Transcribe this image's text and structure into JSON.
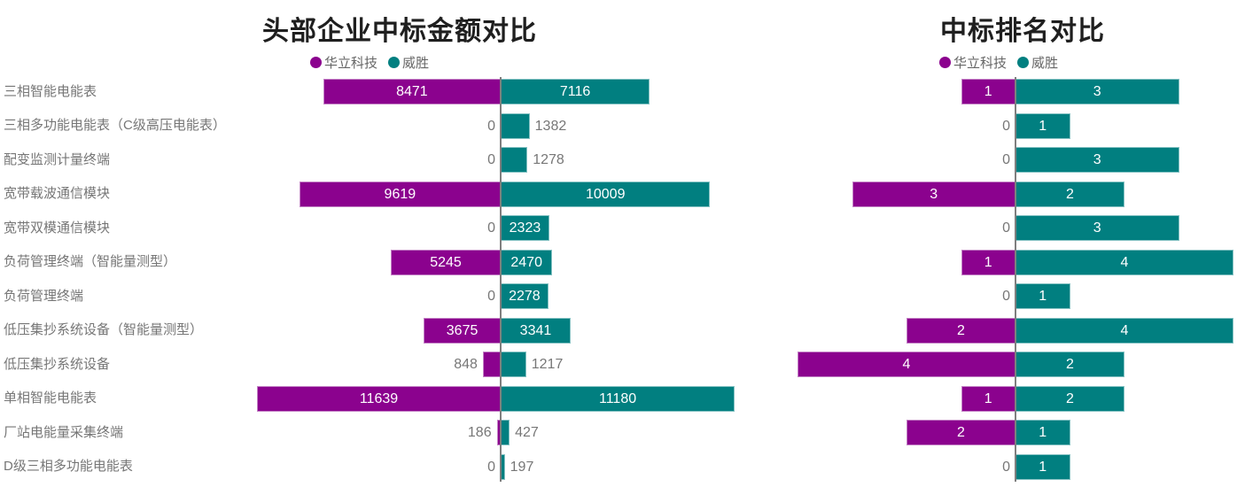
{
  "page": {
    "background": "#FFFFFF"
  },
  "colors": {
    "huali": "#8B028E",
    "weisheng": "#017F80",
    "axis_line": "#7F7F7F",
    "value_label_inside": "#FFFFFF",
    "value_label_outside": "#777777",
    "category_label": "#767676",
    "title_text": "#1F1F1F",
    "legend_text": "#666666"
  },
  "chart_data": [
    {
      "type": "bar",
      "variant": "tornado-horizontal",
      "title": "头部企业中标金额对比",
      "legend_position": "top",
      "grid": false,
      "value_range": [
        0,
        11639
      ],
      "categories": [
        "三相智能电能表",
        "三相多功能电能表（C级高压电能表）",
        "配变监测计量终端",
        "宽带载波通信模块",
        "宽带双模通信模块",
        "负荷管理终端（智能量测型）",
        "负荷管理终端",
        "低压集抄系统设备（智能量测型）",
        "低压集抄系统设备",
        "单相智能电能表",
        "厂站电能量采集终端",
        "D级三相多功能电能表"
      ],
      "series": [
        {
          "name": "华立科技",
          "color": "#8B028E",
          "values": [
            8471,
            0,
            0,
            9619,
            0,
            5245,
            0,
            3675,
            848,
            11639,
            186,
            0
          ]
        },
        {
          "name": "威胜",
          "color": "#017F80",
          "values": [
            7116,
            1382,
            1278,
            10009,
            2323,
            2470,
            2278,
            3341,
            1217,
            11180,
            427,
            197
          ]
        }
      ]
    },
    {
      "type": "bar",
      "variant": "tornado-horizontal",
      "title": "中标排名对比",
      "legend_position": "top",
      "grid": false,
      "value_range": [
        0,
        4
      ],
      "categories": [
        "三相智能电能表",
        "三相多功能电能表（C级高压电能表）",
        "配变监测计量终端",
        "宽带载波通信模块",
        "宽带双模通信模块",
        "负荷管理终端（智能量测型）",
        "负荷管理终端",
        "低压集抄系统设备（智能量测型）",
        "低压集抄系统设备",
        "单相智能电能表",
        "厂站电能量采集终端",
        "D级三相多功能电能表"
      ],
      "series": [
        {
          "name": "华立科技",
          "color": "#8B028E",
          "values": [
            1,
            0,
            0,
            3,
            0,
            1,
            0,
            2,
            4,
            1,
            2,
            0
          ]
        },
        {
          "name": "威胜",
          "color": "#017F80",
          "values": [
            3,
            1,
            3,
            2,
            3,
            4,
            1,
            4,
            2,
            2,
            1,
            1
          ]
        }
      ]
    }
  ]
}
